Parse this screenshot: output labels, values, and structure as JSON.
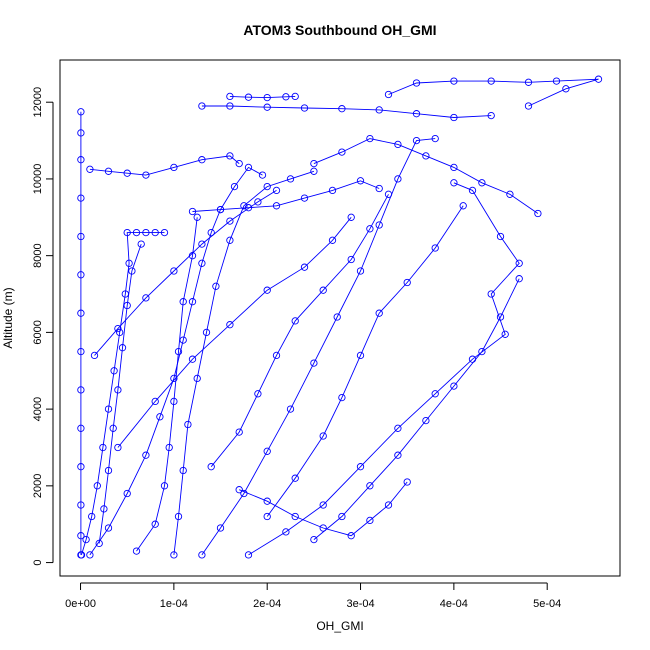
{
  "chart_data": {
    "type": "scatter",
    "title": "ATOM3 Southbound OH_GMI",
    "xlabel": "OH_GMI",
    "ylabel": "Altitude (m)",
    "xlim": [
      -2.2e-05,
      0.000578
    ],
    "ylim": [
      -350,
      13100
    ],
    "x_ticks": [
      0,
      0.0001,
      0.0002,
      0.0003,
      0.0004,
      0.0005
    ],
    "x_tick_labels": [
      "0e+00",
      "1e-04",
      "2e-04",
      "3e-04",
      "4e-04",
      "5e-04"
    ],
    "y_ticks": [
      0,
      2000,
      4000,
      6000,
      8000,
      10000,
      12000
    ],
    "y_tick_labels": [
      "0",
      "2000",
      "4000",
      "6000",
      "8000",
      "10000",
      "12000"
    ],
    "grid": false,
    "legend": "none",
    "marker": "open-circle",
    "connected": true,
    "color": "#0000ff",
    "series": [
      {
        "points": [
          [
            4e-07,
            200
          ],
          [
            4e-07,
            700
          ],
          [
            4e-07,
            1500
          ],
          [
            4e-07,
            2500
          ],
          [
            4e-07,
            3500
          ],
          [
            4e-07,
            4500
          ],
          [
            4e-07,
            5500
          ],
          [
            4e-07,
            6500
          ],
          [
            4e-07,
            7500
          ],
          [
            4e-07,
            8500
          ],
          [
            4e-07,
            9500
          ],
          [
            4e-07,
            10500
          ],
          [
            4e-07,
            11200
          ],
          [
            4e-07,
            11750
          ]
        ]
      },
      {
        "points": [
          [
            1e-06,
            200
          ],
          [
            6e-06,
            600
          ],
          [
            1.2e-05,
            1200
          ],
          [
            1.8e-05,
            2000
          ],
          [
            2.4e-05,
            3000
          ],
          [
            3e-05,
            4000
          ],
          [
            3.6e-05,
            5000
          ],
          [
            4.2e-05,
            6000
          ],
          [
            4.8e-05,
            7000
          ],
          [
            5.2e-05,
            7800
          ],
          [
            5e-05,
            8600
          ],
          [
            6e-05,
            8600
          ],
          [
            7e-05,
            8600
          ],
          [
            8e-05,
            8600
          ],
          [
            9e-05,
            8600
          ]
        ]
      },
      {
        "points": [
          [
            1e-05,
            200
          ],
          [
            3e-05,
            900
          ],
          [
            5e-05,
            1800
          ],
          [
            7e-05,
            2800
          ],
          [
            8.5e-05,
            3800
          ],
          [
            0.0001,
            4800
          ],
          [
            0.00011,
            5800
          ],
          [
            0.00012,
            6800
          ],
          [
            0.00013,
            7800
          ],
          [
            0.00014,
            8600
          ],
          [
            0.00015,
            9200
          ],
          [
            0.000165,
            9800
          ],
          [
            0.00018,
            10300
          ],
          [
            0.000195,
            10100
          ]
        ]
      },
      {
        "points": [
          [
            0.0001,
            200
          ],
          [
            0.000105,
            1200
          ],
          [
            0.00011,
            2400
          ],
          [
            0.000115,
            3600
          ],
          [
            0.000125,
            4800
          ],
          [
            0.000135,
            6000
          ],
          [
            0.000145,
            7200
          ],
          [
            0.00016,
            8400
          ],
          [
            0.000175,
            9300
          ],
          [
            0.0002,
            9800
          ],
          [
            0.000225,
            10000
          ],
          [
            0.00025,
            10200
          ]
        ]
      },
      {
        "points": [
          [
            0.00013,
            200
          ],
          [
            0.00015,
            900
          ],
          [
            0.000175,
            1800
          ],
          [
            0.0002,
            2900
          ],
          [
            0.000225,
            4000
          ],
          [
            0.00025,
            5200
          ],
          [
            0.000275,
            6400
          ],
          [
            0.0003,
            7600
          ],
          [
            0.00032,
            8800
          ],
          [
            0.00034,
            10000
          ],
          [
            0.00036,
            11000
          ],
          [
            0.00038,
            11050
          ]
        ]
      },
      {
        "points": [
          [
            0.00018,
            200
          ],
          [
            0.00022,
            800
          ],
          [
            0.00026,
            1500
          ],
          [
            0.0003,
            2500
          ],
          [
            0.00034,
            3500
          ],
          [
            0.00038,
            4400
          ],
          [
            0.00042,
            5300
          ],
          [
            0.000455,
            5950
          ],
          [
            0.00044,
            7000
          ],
          [
            0.00047,
            7800
          ],
          [
            0.00045,
            8500
          ],
          [
            0.00042,
            9700
          ],
          [
            0.0004,
            9900
          ]
        ]
      },
      {
        "points": [
          [
            0.00013,
            11900
          ],
          [
            0.00016,
            11900
          ],
          [
            0.0002,
            11870
          ],
          [
            0.00024,
            11850
          ],
          [
            0.00028,
            11830
          ],
          [
            0.00032,
            11800
          ],
          [
            0.00036,
            11700
          ],
          [
            0.0004,
            11600
          ],
          [
            0.00044,
            11650
          ]
        ]
      },
      {
        "points": [
          [
            0.00016,
            12150
          ],
          [
            0.00018,
            12130
          ],
          [
            0.0002,
            12120
          ],
          [
            0.00022,
            12140
          ],
          [
            0.00023,
            12150
          ]
        ]
      },
      {
        "points": [
          [
            0.00033,
            12200
          ],
          [
            0.00036,
            12500
          ],
          [
            0.0004,
            12550
          ],
          [
            0.00044,
            12550
          ],
          [
            0.00048,
            12520
          ],
          [
            0.00051,
            12550
          ],
          [
            0.000555,
            12600
          ],
          [
            0.00052,
            12350
          ],
          [
            0.00048,
            11900
          ]
        ]
      },
      {
        "points": [
          [
            1e-05,
            10250
          ],
          [
            3e-05,
            10200
          ],
          [
            5e-05,
            10150
          ],
          [
            7e-05,
            10100
          ],
          [
            0.0001,
            10300
          ],
          [
            0.00013,
            10500
          ],
          [
            0.00016,
            10600
          ],
          [
            0.00017,
            10400
          ]
        ]
      },
      {
        "points": [
          [
            0.00012,
            9150
          ],
          [
            0.00015,
            9200
          ],
          [
            0.00018,
            9250
          ],
          [
            0.00021,
            9300
          ],
          [
            0.00024,
            9500
          ],
          [
            0.00027,
            9700
          ],
          [
            0.0003,
            9950
          ],
          [
            0.00032,
            9750
          ]
        ]
      },
      {
        "points": [
          [
            0.00025,
            10400
          ],
          [
            0.00028,
            10700
          ],
          [
            0.00031,
            11050
          ],
          [
            0.00034,
            10900
          ],
          [
            0.00037,
            10600
          ],
          [
            0.0004,
            10300
          ],
          [
            0.00043,
            9900
          ],
          [
            0.00046,
            9600
          ],
          [
            0.00049,
            9100
          ]
        ]
      },
      {
        "points": [
          [
            4e-05,
            3000
          ],
          [
            8e-05,
            4200
          ],
          [
            0.00012,
            5300
          ],
          [
            0.00016,
            6200
          ],
          [
            0.0002,
            7100
          ],
          [
            0.00024,
            7700
          ],
          [
            0.00027,
            8400
          ],
          [
            0.00029,
            9000
          ]
        ]
      },
      {
        "points": [
          [
            1.5e-05,
            5400
          ],
          [
            4e-05,
            6100
          ],
          [
            7e-05,
            6900
          ],
          [
            0.0001,
            7600
          ],
          [
            0.00013,
            8300
          ],
          [
            0.00016,
            8900
          ],
          [
            0.00019,
            9400
          ],
          [
            0.00021,
            9700
          ]
        ]
      },
      {
        "points": [
          [
            6e-05,
            300
          ],
          [
            8e-05,
            1000
          ],
          [
            9e-05,
            2000
          ],
          [
            9.5e-05,
            3000
          ],
          [
            0.0001,
            4200
          ],
          [
            0.000105,
            5500
          ],
          [
            0.00011,
            6800
          ],
          [
            0.00012,
            8000
          ],
          [
            0.000125,
            9000
          ]
        ]
      },
      {
        "points": [
          [
            0.0002,
            1200
          ],
          [
            0.00023,
            2200
          ],
          [
            0.00026,
            3300
          ],
          [
            0.00028,
            4300
          ],
          [
            0.0003,
            5400
          ],
          [
            0.00032,
            6500
          ],
          [
            0.00035,
            7300
          ],
          [
            0.00038,
            8200
          ],
          [
            0.00041,
            9300
          ]
        ]
      },
      {
        "points": [
          [
            0.00025,
            600
          ],
          [
            0.00028,
            1200
          ],
          [
            0.00031,
            2000
          ],
          [
            0.00034,
            2800
          ],
          [
            0.00037,
            3700
          ],
          [
            0.0004,
            4600
          ],
          [
            0.00043,
            5500
          ],
          [
            0.00045,
            6400
          ],
          [
            0.00047,
            7400
          ]
        ]
      },
      {
        "points": [
          [
            2e-05,
            500
          ],
          [
            2.5e-05,
            1400
          ],
          [
            3e-05,
            2400
          ],
          [
            3.5e-05,
            3500
          ],
          [
            4e-05,
            4500
          ],
          [
            4.5e-05,
            5600
          ],
          [
            5e-05,
            6700
          ],
          [
            5.5e-05,
            7600
          ],
          [
            6.5e-05,
            8300
          ]
        ]
      },
      {
        "points": [
          [
            0.00014,
            2500
          ],
          [
            0.00017,
            3400
          ],
          [
            0.00019,
            4400
          ],
          [
            0.00021,
            5400
          ],
          [
            0.00023,
            6300
          ],
          [
            0.00026,
            7100
          ],
          [
            0.00029,
            7900
          ],
          [
            0.00031,
            8700
          ],
          [
            0.00033,
            9600
          ]
        ]
      },
      {
        "points": [
          [
            0.00017,
            1900
          ],
          [
            0.0002,
            1600
          ],
          [
            0.00023,
            1200
          ],
          [
            0.00026,
            900
          ],
          [
            0.00029,
            700
          ],
          [
            0.00031,
            1100
          ],
          [
            0.00033,
            1500
          ],
          [
            0.00035,
            2100
          ]
        ]
      }
    ]
  }
}
